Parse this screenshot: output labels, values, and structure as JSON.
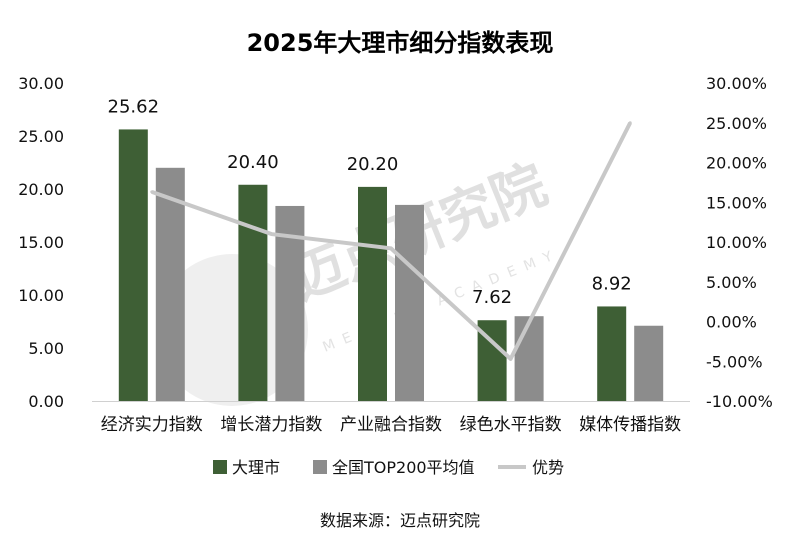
{
  "chart_data": {
    "type": "bar",
    "title": "2025年大理市细分指数表现",
    "categories": [
      "经济实力指数",
      "增长潜力指数",
      "产业融合指数",
      "绿色水平指数",
      "媒体传播指数"
    ],
    "series": [
      {
        "name": "大理市",
        "type": "bar",
        "axis": "left",
        "color": "#3e5f35",
        "values": [
          25.62,
          20.4,
          20.2,
          7.62,
          8.92
        ],
        "labels": [
          "25.62",
          "20.40",
          "20.20",
          "7.62",
          "8.92"
        ]
      },
      {
        "name": "全国TOP200平均值",
        "type": "bar",
        "axis": "left",
        "color": "#8c8c8c",
        "values": [
          22.0,
          18.4,
          18.5,
          8.0,
          7.1
        ]
      },
      {
        "name": "优势",
        "type": "line",
        "axis": "right",
        "color": "#c8c8c8",
        "values": [
          16.3,
          11.0,
          9.2,
          -4.7,
          25.0
        ]
      }
    ],
    "y_left": {
      "min": 0,
      "max": 30,
      "step": 5,
      "ticks": [
        "0.00",
        "5.00",
        "10.00",
        "15.00",
        "20.00",
        "25.00",
        "30.00"
      ]
    },
    "y_right": {
      "min": -10,
      "max": 30,
      "step": 5,
      "ticks": [
        "-10.00%",
        "-5.00%",
        "0.00%",
        "5.00%",
        "10.00%",
        "15.00%",
        "20.00%",
        "25.00%",
        "30.00%"
      ]
    },
    "legend_position": "bottom",
    "grid": false
  },
  "source": "数据来源：迈点研究院",
  "watermark": {
    "text": "迈点研究院",
    "sub": "MEADIN ACADEMY"
  }
}
